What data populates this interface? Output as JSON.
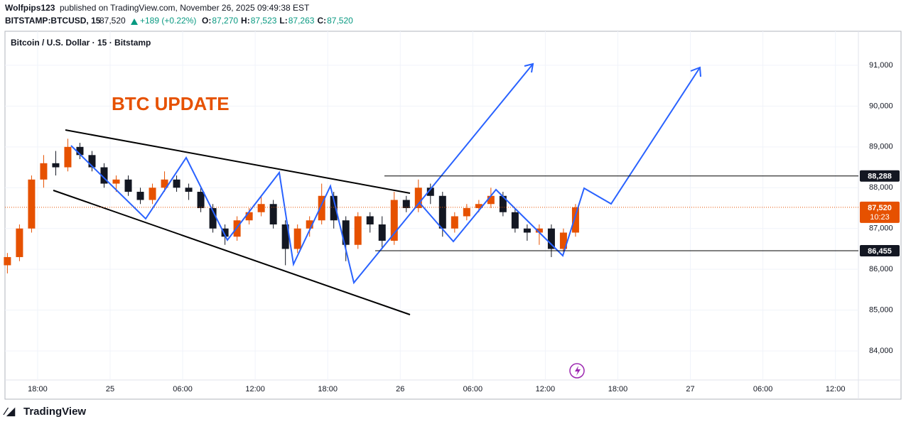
{
  "header": {
    "publisher": "Wolfpips123",
    "published": "published on TradingView.com, November 26, 2025 09:49:38 EST",
    "symbol": "BITSTAMP:BTCUSD, 15",
    "last": "87,520",
    "change": "+189 (+0.22%)",
    "ohlc": [
      {
        "label": "O:",
        "value": "87,270"
      },
      {
        "label": "H:",
        "value": "87,523"
      },
      {
        "label": "L:",
        "value": "87,263"
      },
      {
        "label": "C:",
        "value": "87,520"
      }
    ]
  },
  "footer": {
    "brand": "TradingView"
  },
  "chart_data": {
    "type": "candlestick",
    "title": "Bitcoin / U.S. Dollar · 15 · Bitstamp",
    "annotation": "BTC UPDATE",
    "x": [
      -8.5,
      -7.5,
      -6.5,
      -5.5,
      -4.5,
      -3.5,
      -2.5,
      -1.5,
      -0.5,
      0.5,
      1.5,
      2.5,
      3.5,
      4.5,
      5.5,
      6.5,
      7.5,
      8.5,
      9.5,
      10.5,
      11.5,
      12.5,
      13.5,
      14.5,
      15.5,
      16.5,
      17.5,
      18.5,
      19.5,
      20.5,
      21.5,
      22.5,
      23.5,
      24.5,
      25.5,
      26.5,
      27.5,
      28.5,
      29.5,
      30.5,
      31.5,
      32.5,
      33.5,
      34.5,
      35.5,
      36.5,
      37.5,
      38.5
    ],
    "open": [
      86100,
      86300,
      87000,
      88200,
      88600,
      88500,
      89000,
      88800,
      88500,
      88100,
      88200,
      87900,
      87700,
      88000,
      88200,
      88000,
      87900,
      87500,
      87000,
      86800,
      87200,
      87400,
      87600,
      87100,
      86500,
      87000,
      87200,
      87800,
      87200,
      86600,
      87300,
      87100,
      86700,
      87700,
      87500,
      88000,
      87800,
      87000,
      87300,
      87500,
      87600,
      87800,
      87400,
      87000,
      86900,
      87000,
      86500,
      86900
    ],
    "high": [
      86400,
      87100,
      88300,
      88800,
      88900,
      89200,
      89100,
      88900,
      88600,
      88300,
      88300,
      88000,
      88100,
      88400,
      88300,
      88100,
      88000,
      87600,
      87100,
      87300,
      87500,
      87800,
      87700,
      87200,
      87100,
      87300,
      88100,
      87900,
      87300,
      87400,
      87400,
      87300,
      87900,
      87800,
      88200,
      88100,
      87900,
      87400,
      87600,
      87700,
      88000,
      87900,
      87500,
      87100,
      87100,
      87100,
      87000,
      87600
    ],
    "low": [
      85900,
      86200,
      86900,
      88000,
      88300,
      88400,
      88700,
      88400,
      88000,
      87900,
      87800,
      87600,
      87600,
      87900,
      87900,
      87700,
      87400,
      86900,
      86600,
      86700,
      87100,
      87300,
      87000,
      86100,
      86400,
      86800,
      87100,
      87000,
      86200,
      86500,
      86900,
      86500,
      86600,
      87400,
      87400,
      87600,
      86800,
      86900,
      87200,
      87400,
      87500,
      87300,
      86900,
      86700,
      86600,
      86300,
      86400,
      86800
    ],
    "close": [
      86300,
      87000,
      88200,
      88600,
      88500,
      89000,
      88800,
      88500,
      88100,
      88200,
      87900,
      87700,
      88000,
      88200,
      88000,
      87900,
      87500,
      87000,
      86800,
      87200,
      87400,
      87600,
      87100,
      86500,
      87000,
      87200,
      87800,
      87200,
      86600,
      87300,
      87100,
      86700,
      87700,
      87500,
      88000,
      87800,
      87000,
      87300,
      87500,
      87600,
      87800,
      87400,
      87000,
      86900,
      87000,
      86500,
      86900,
      87520
    ],
    "up_color": "#e65100",
    "down_color": "#131722",
    "xlim": [
      -8.7,
      61.9
    ],
    "xticks": [
      {
        "value": -6,
        "label": "18:00"
      },
      {
        "value": 0,
        "label": "25"
      },
      {
        "value": 6,
        "label": "06:00"
      },
      {
        "value": 12,
        "label": "12:00"
      },
      {
        "value": 18,
        "label": "18:00"
      },
      {
        "value": 24,
        "label": "26"
      },
      {
        "value": 30,
        "label": "06:00"
      },
      {
        "value": 36,
        "label": "12:00"
      },
      {
        "value": 42,
        "label": "18:00"
      },
      {
        "value": 48,
        "label": "27"
      },
      {
        "value": 54,
        "label": "06:00"
      },
      {
        "value": 60,
        "label": "12:00"
      }
    ],
    "ylim": [
      83288,
      91834
    ],
    "yticks": [
      {
        "value": 84000,
        "label": "84,000"
      },
      {
        "value": 85000,
        "label": "85,000"
      },
      {
        "value": 86000,
        "label": "86,000"
      },
      {
        "value": 87000,
        "label": "87,000"
      },
      {
        "value": 88000,
        "label": "88,000"
      },
      {
        "value": 89000,
        "label": "89,000"
      },
      {
        "value": 90000,
        "label": "90,000"
      },
      {
        "value": 91000,
        "label": "91,000"
      }
    ],
    "grid": true,
    "levels": [
      {
        "value": 88288,
        "label": "88,288"
      },
      {
        "value": 86455,
        "label": "86,455"
      }
    ],
    "last_price": {
      "value": 87520,
      "label": "87,520"
    },
    "countdown": "10:23"
  }
}
